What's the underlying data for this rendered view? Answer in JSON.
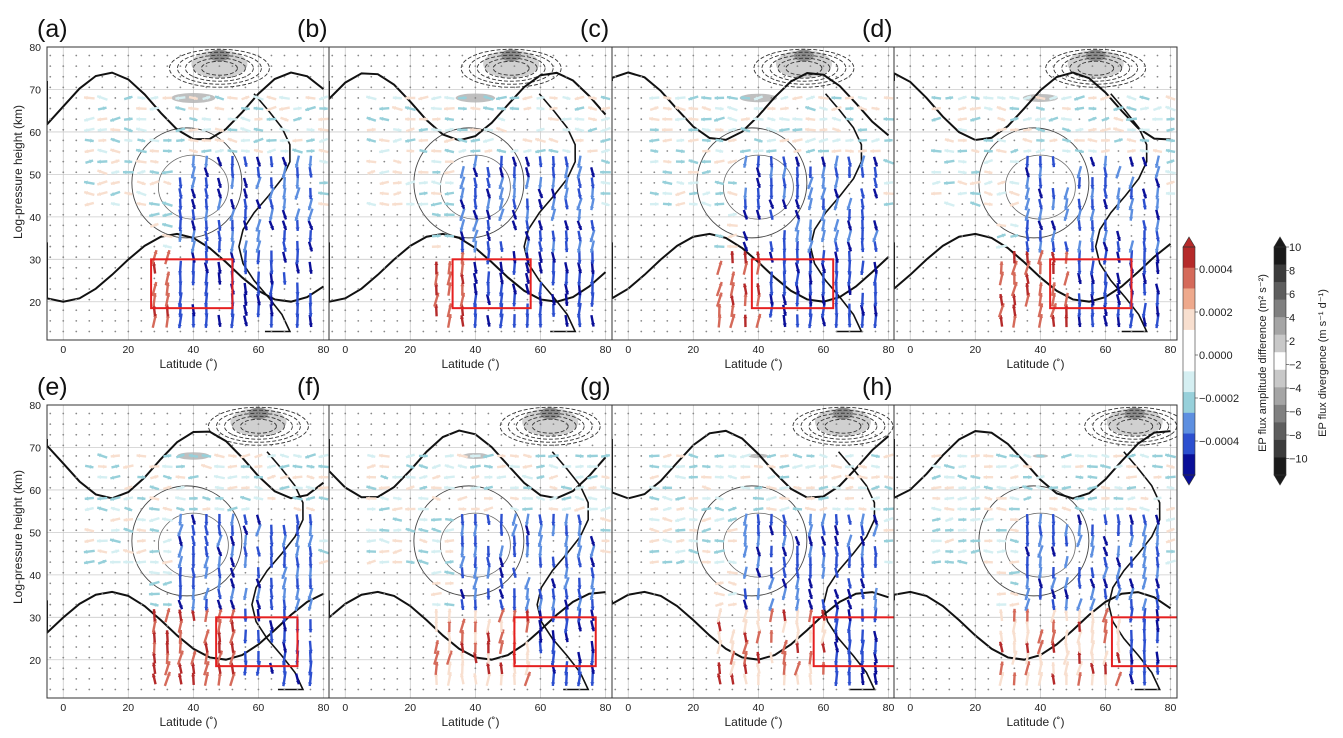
{
  "figure": {
    "panels": [
      {
        "label": "(a)",
        "box": {
          "lat": [
            27,
            52
          ],
          "z": [
            18.5,
            30
          ]
        },
        "strength": 1.0
      },
      {
        "label": "(b)",
        "box": {
          "lat": [
            33,
            57
          ],
          "z": [
            18.5,
            30
          ]
        },
        "strength": 0.9
      },
      {
        "label": "(c)",
        "box": {
          "lat": [
            38,
            63
          ],
          "z": [
            18.5,
            30
          ]
        },
        "strength": 0.85
      },
      {
        "label": "(d)",
        "box": {
          "lat": [
            43,
            68
          ],
          "z": [
            18.5,
            30
          ]
        },
        "strength": 0.8
      },
      {
        "label": "(e)",
        "box": {
          "lat": [
            47,
            72
          ],
          "z": [
            18.5,
            30
          ]
        },
        "strength": 0.75
      },
      {
        "label": "(f)",
        "box": {
          "lat": [
            52,
            77
          ],
          "z": [
            18.5,
            30
          ]
        },
        "strength": 0.6
      },
      {
        "label": "(g)",
        "box": {
          "lat": [
            57,
            82
          ],
          "z": [
            18.5,
            30
          ]
        },
        "strength": 0.45
      },
      {
        "label": "(h)",
        "box": {
          "lat": [
            62,
            85
          ],
          "z": [
            18.5,
            30
          ]
        },
        "strength": 0.35
      }
    ],
    "y_axis_label": "Log-pressure  height (km)",
    "x_axis_label": "Latitude (˚)",
    "x_ticks": [
      "0",
      "20",
      "40",
      "60",
      "80"
    ],
    "y_ticks": [
      "20",
      "30",
      "40",
      "50",
      "60",
      "70",
      "80"
    ],
    "box_color": "#e52020"
  },
  "colorbars": {
    "amplitude": {
      "title": "EP flux amplitude difference (m² s⁻²)",
      "ticks": [
        "0.0004",
        "0.0002",
        "0.0000",
        "−0.0002",
        "−0.0004"
      ],
      "colors": [
        "#b52a2a",
        "#d56a5a",
        "#eea98c",
        "#f8dfcf",
        "#ffffff",
        "#ffffff",
        "#d5eff2",
        "#97d0da",
        "#5d8fe0",
        "#2c4fcf",
        "#0a0f98"
      ]
    },
    "divergence": {
      "title": "EP flux divergence (m s⁻¹ d⁻¹)",
      "ticks": [
        "10",
        "8",
        "6",
        "4",
        "2",
        "−2",
        "−4",
        "−6",
        "−8",
        "−10"
      ],
      "colors": [
        "#1a1a1a",
        "#3c3c3c",
        "#5e5e5e",
        "#808080",
        "#a5a5a5",
        "#c8c8c8",
        "#ffffff",
        "#c8c8c8",
        "#a5a5a5",
        "#808080",
        "#5e5e5e",
        "#3c3c3c",
        "#1a1a1a"
      ]
    }
  },
  "chart_data": {
    "type": "vector-field",
    "x": {
      "label": "Latitude (˚)",
      "range": [
        -5,
        82
      ]
    },
    "y": {
      "label": "Log-pressure  height (km)",
      "range": [
        11,
        80
      ]
    },
    "panels": [
      "(a)",
      "(b)",
      "(c)",
      "(d)",
      "(e)",
      "(f)",
      "(g)",
      "(h)"
    ]
  }
}
